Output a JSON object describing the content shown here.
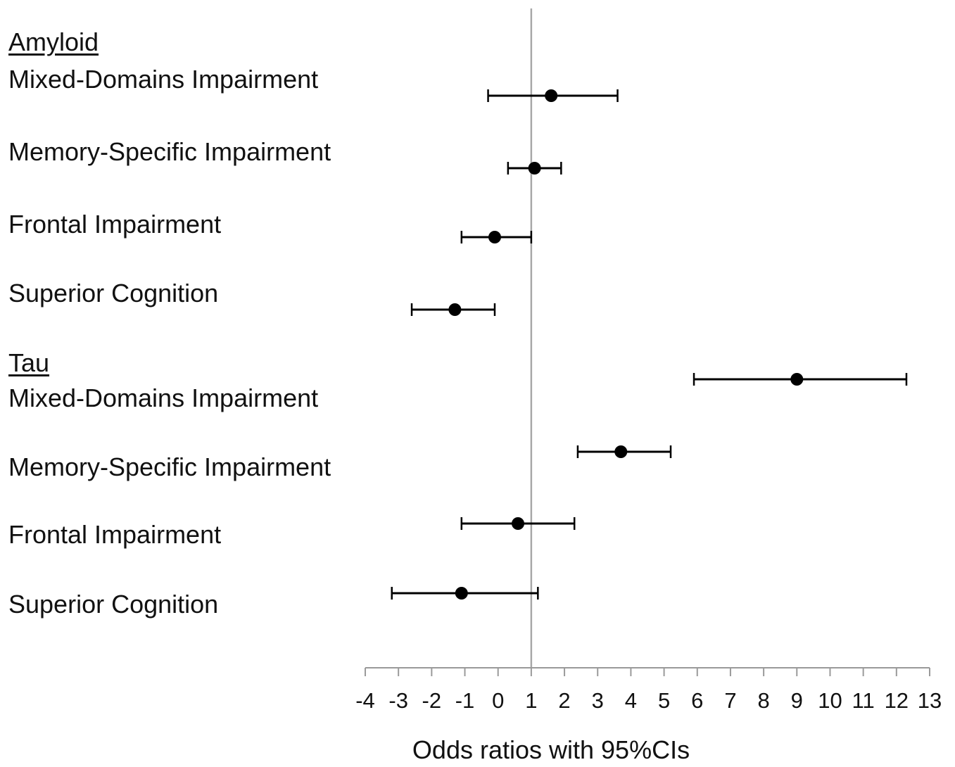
{
  "chart_data": {
    "type": "scatter",
    "xlabel": "Odds ratios with 95%CIs",
    "xlim": [
      -4,
      13
    ],
    "xticks": [
      "-4",
      "-3",
      "-2",
      "-1",
      "0",
      "1",
      "2",
      "3",
      "4",
      "5",
      "6",
      "7",
      "8",
      "9",
      "10",
      "11",
      "12",
      "13"
    ],
    "reference_line_x": 1,
    "groups": [
      {
        "name": "Amyloid",
        "rows": [
          {
            "label": "Mixed-Domains Impairment",
            "estimate": 1.6,
            "lower": -0.3,
            "upper": 3.6
          },
          {
            "label": "Memory-Specific Impairment",
            "estimate": 1.1,
            "lower": 0.3,
            "upper": 1.9
          },
          {
            "label": "Frontal Impairment",
            "estimate": -0.1,
            "lower": -1.1,
            "upper": 1.0
          },
          {
            "label": "Superior Cognition",
            "estimate": -1.3,
            "lower": -2.6,
            "upper": -0.1
          }
        ]
      },
      {
        "name": "Tau",
        "rows": [
          {
            "label": "Mixed-Domains Impairment",
            "estimate": 9.0,
            "lower": 5.9,
            "upper": 12.3
          },
          {
            "label": "Memory-Specific Impairment",
            "estimate": 3.7,
            "lower": 2.4,
            "upper": 5.2
          },
          {
            "label": "Frontal Impairment",
            "estimate": 0.6,
            "lower": -1.1,
            "upper": 2.3
          },
          {
            "label": "Superior Cognition",
            "estimate": -1.1,
            "lower": -3.2,
            "upper": 1.2
          }
        ]
      }
    ]
  }
}
